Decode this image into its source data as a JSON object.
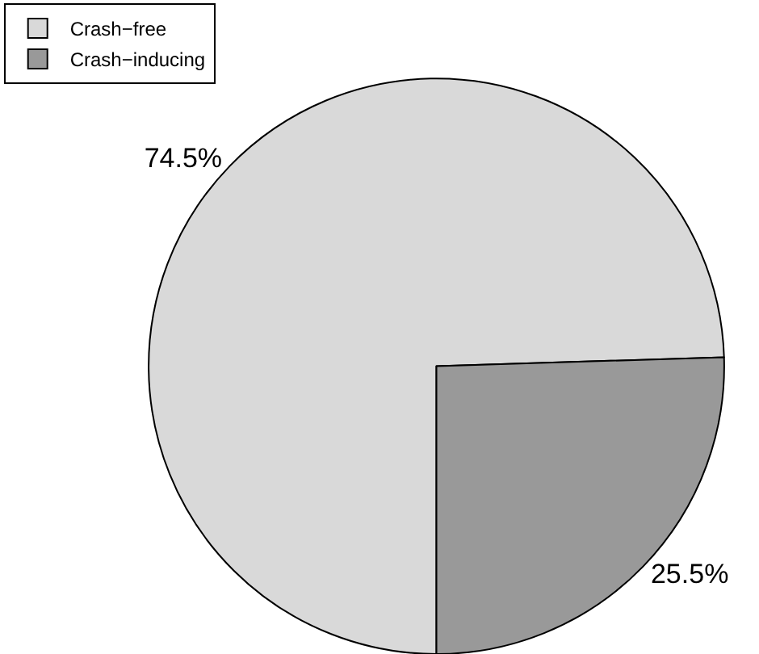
{
  "chart_data": {
    "type": "pie",
    "categories": [
      "Crash−free",
      "Crash−inducing"
    ],
    "values": [
      74.5,
      25.5
    ],
    "colors": [
      "#d9d9d9",
      "#999999"
    ],
    "value_labels": [
      "74.5%",
      "25.5%"
    ],
    "legend": "top left"
  }
}
